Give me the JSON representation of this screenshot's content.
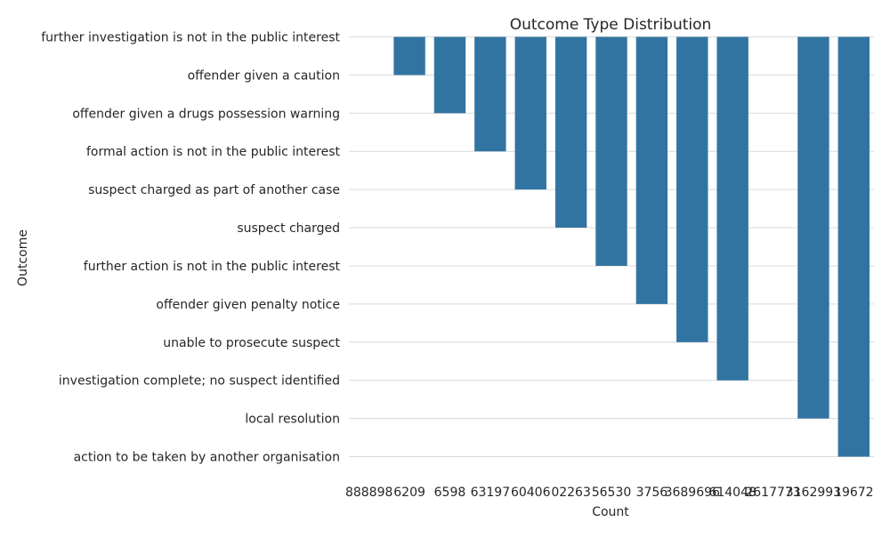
{
  "chart_data": {
    "type": "bar",
    "title": "Outcome Type Distribution",
    "xlabel": "Count",
    "ylabel": "Outcome",
    "categories": [
      "further investigation is not in the public interest",
      "offender given a caution",
      "offender given a drugs possession warning",
      "formal action is not in the public interest",
      "suspect charged as part of another case",
      "suspect charged",
      "further action is not in the public interest",
      "offender given penalty notice",
      "unable to prosecute suspect",
      "investigation complete; no suspect identified",
      "local resolution",
      "action to be taken by another organisation"
    ],
    "x_ticks": [
      "888898",
      "6209",
      "6598",
      "63197",
      "60406",
      "02263",
      "56530",
      "3756",
      "3689696",
      "614048",
      "2617773",
      "3162993",
      "19672"
    ],
    "bars": [
      {
        "x_index": 1,
        "extent_to_category": 1
      },
      {
        "x_index": 2,
        "extent_to_category": 2
      },
      {
        "x_index": 3,
        "extent_to_category": 3
      },
      {
        "x_index": 4,
        "extent_to_category": 4
      },
      {
        "x_index": 5,
        "extent_to_category": 5
      },
      {
        "x_index": 6,
        "extent_to_category": 6
      },
      {
        "x_index": 7,
        "extent_to_category": 7
      },
      {
        "x_index": 8,
        "extent_to_category": 8
      },
      {
        "x_index": 9,
        "extent_to_category": 9
      },
      {
        "x_index": 11,
        "extent_to_category": 10
      },
      {
        "x_index": 12,
        "extent_to_category": 11
      }
    ],
    "bar_color": "#3274a1",
    "grid": true,
    "grid_color": "#d9d9d9"
  }
}
